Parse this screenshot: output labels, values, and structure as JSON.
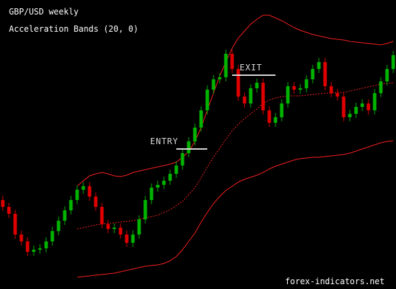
{
  "chart_data": {
    "type": "candlestick",
    "title": "GBP/USD weekly",
    "subtitle": "Acceleration Bands (20, 0)",
    "watermark": "forex-indicators.net",
    "ylim": [
      0,
      419
    ],
    "up_color": "#00b400",
    "down_color": "#e00000",
    "open": [
      129,
      119,
      109,
      79,
      69,
      54,
      57,
      59,
      69,
      84,
      99,
      114,
      129,
      144,
      149,
      134,
      119,
      94,
      87,
      89,
      79,
      67,
      79,
      101,
      129,
      147,
      151,
      157,
      167,
      179,
      197,
      214,
      234,
      259,
      289,
      304,
      307,
      341,
      319,
      279,
      269,
      291,
      299,
      259,
      241,
      249,
      269,
      294,
      289,
      291,
      304,
      319,
      329,
      294,
      284,
      279,
      249,
      254,
      264,
      269,
      259,
      284,
      301,
      319
    ],
    "high": [
      135,
      125,
      115,
      85,
      75,
      63,
      65,
      75,
      90,
      105,
      120,
      135,
      150,
      155,
      155,
      140,
      125,
      100,
      95,
      95,
      85,
      85,
      107,
      135,
      153,
      157,
      163,
      173,
      185,
      203,
      220,
      240,
      265,
      295,
      310,
      313,
      347,
      347,
      325,
      285,
      297,
      305,
      305,
      265,
      255,
      275,
      300,
      300,
      297,
      310,
      325,
      335,
      335,
      300,
      290,
      285,
      260,
      270,
      275,
      275,
      290,
      307,
      325,
      345
    ],
    "low": [
      113,
      103,
      73,
      63,
      48,
      48,
      51,
      53,
      63,
      78,
      93,
      108,
      123,
      138,
      128,
      113,
      88,
      81,
      81,
      73,
      61,
      61,
      73,
      95,
      123,
      141,
      145,
      151,
      161,
      173,
      191,
      208,
      228,
      253,
      283,
      298,
      301,
      313,
      273,
      263,
      263,
      285,
      253,
      235,
      235,
      243,
      263,
      283,
      283,
      285,
      298,
      313,
      288,
      278,
      273,
      243,
      243,
      248,
      258,
      253,
      253,
      278,
      295,
      313
    ],
    "close": [
      119,
      109,
      79,
      69,
      54,
      57,
      59,
      69,
      84,
      99,
      114,
      129,
      144,
      149,
      134,
      119,
      94,
      87,
      89,
      79,
      67,
      79,
      101,
      129,
      147,
      151,
      157,
      167,
      179,
      197,
      214,
      234,
      259,
      289,
      304,
      307,
      341,
      319,
      279,
      269,
      291,
      299,
      259,
      241,
      249,
      269,
      294,
      289,
      291,
      304,
      319,
      329,
      294,
      284,
      279,
      249,
      254,
      264,
      269,
      259,
      284,
      301,
      319,
      339
    ],
    "bands": [
      {
        "color": "#ff2020",
        "dashed": false,
        "values": [
          null,
          null,
          null,
          null,
          null,
          null,
          null,
          null,
          null,
          null,
          null,
          null,
          149,
          157,
          164,
          167,
          169,
          167,
          164,
          163,
          165,
          169,
          171,
          173,
          175,
          177,
          179,
          181,
          184,
          191,
          199,
          214,
          234,
          259,
          284,
          309,
          329,
          349,
          364,
          374,
          384,
          391,
          397,
          397,
          393,
          389,
          384,
          379,
          375,
          372,
          369,
          367,
          365,
          363,
          362,
          361,
          359,
          358,
          357,
          356,
          355,
          354,
          356,
          359
        ]
      },
      {
        "color": "#ff2020",
        "dashed": true,
        "values": [
          null,
          null,
          null,
          null,
          null,
          null,
          null,
          null,
          null,
          null,
          null,
          null,
          87,
          89,
          91,
          93,
          94,
          95,
          96,
          97,
          98,
          99,
          101,
          103,
          105,
          107,
          111,
          115,
          121,
          127,
          137,
          147,
          161,
          177,
          191,
          204,
          217,
          229,
          239,
          247,
          254,
          261,
          269,
          274,
          277,
          279,
          280,
          280,
          280,
          281,
          282,
          283,
          284,
          284,
          285,
          285,
          287,
          289,
          291,
          293,
          295,
          297,
          298,
          299
        ]
      },
      {
        "color": "#ff2020",
        "dashed": false,
        "values": [
          null,
          null,
          null,
          null,
          null,
          null,
          null,
          null,
          null,
          null,
          null,
          null,
          17,
          18,
          19,
          20,
          21,
          22,
          23,
          25,
          27,
          29,
          31,
          33,
          34,
          35,
          37,
          41,
          47,
          57,
          69,
          81,
          97,
          111,
          124,
          134,
          143,
          149,
          155,
          159,
          162,
          165,
          169,
          174,
          178,
          181,
          184,
          187,
          189,
          190,
          191,
          191,
          192,
          193,
          194,
          195,
          197,
          200,
          203,
          206,
          209,
          212,
          214,
          215
        ]
      }
    ],
    "annotations": [
      {
        "text": "ENTRY",
        "value": 203,
        "color": "#dddddd"
      },
      {
        "text": "EXIT",
        "value": 310,
        "color": "#dddddd"
      }
    ]
  }
}
